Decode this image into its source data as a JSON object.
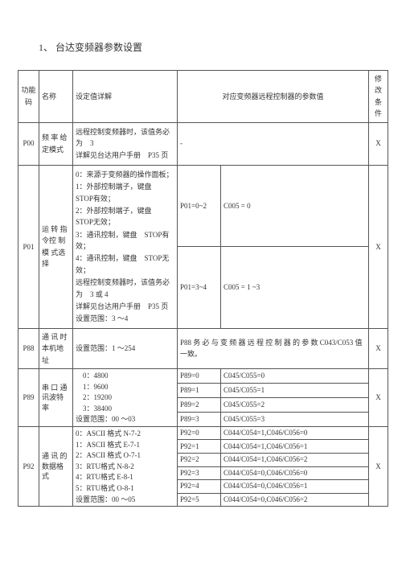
{
  "title": "1、 台达变频器参数设置",
  "headers": {
    "code": "功能码",
    "name": "名称",
    "detail": "设定值详解",
    "remote": "对应变频器远程控制器的参数值",
    "mod": "修 改条件"
  },
  "p00": {
    "code": "P00",
    "name": "频 率 给 定模式",
    "detail_1": "远程控制变频器时，该值务必为　3",
    "detail_2": "详解见台达用户手册　P35 页",
    "pval": "-",
    "mod": "X"
  },
  "p01": {
    "code": "P01",
    "name": "运 转 指 令控 制 模 式选择",
    "lines": [
      "0：来源于变频器的操作面板；",
      "1：外部控制端子，键盘　STOP有效；",
      "2：外部控制端子，键盘　STOP无效；",
      "3：通讯控制，键盘　STOP有效；",
      "4：通讯控制，键盘　STOP无效；",
      "远程控制变频器时，该值务必为　3 或 4",
      "详解见台达用户手册　P35 页",
      "设置范围：3 ～4"
    ],
    "r1_p": "P01=0~2",
    "r1_c": "C005 = 0",
    "r2_p": "P01=3~4",
    "r2_c": "C005 = 1 ~3",
    "mod": "X"
  },
  "p88": {
    "code": "P88",
    "name": "通 讯 时 本机地址",
    "detail": "设置范围：1 ～254",
    "note": "P88 务 必 与 变 频 器 远 程 控 制 器 的 参 数 C043/C053 值一致。",
    "mod": "X"
  },
  "p89": {
    "code": "P89",
    "name": "串 口 通 讯波特率",
    "opts": [
      "　0：4800",
      "　1：9600",
      "　2：19200",
      "　3：38400",
      "设置范围：00 ～03"
    ],
    "rows": [
      {
        "p": "P89=0",
        "c": "C045/C055=0"
      },
      {
        "p": "P89=1",
        "c": "C045/C055=1"
      },
      {
        "p": "P89=2",
        "c": "C045/C055=2"
      },
      {
        "p": "P89=3",
        "c": "C045/C055=3"
      }
    ],
    "mod": "X"
  },
  "p92": {
    "code": "P92",
    "name": "通 讯 的 数据格式",
    "opts": [
      "0：ASCII 格式 N-7-2",
      "1：ASCII 格式 E-7-1",
      "2：ASCII 格式 O-7-1",
      "3：RTU格式 N-8-2",
      "4：RTU格式 E-8-1",
      "5：RTU格式 O-8-1",
      "设置范围：00 ～05"
    ],
    "rows": [
      {
        "p": "P92=0",
        "c": "C044/C054=1,C046/C056=0"
      },
      {
        "p": "P92=1",
        "c": "C044/C054=1,C046/C056=1"
      },
      {
        "p": "P92=2",
        "c": "C044/C054=1,C046/C056=2"
      },
      {
        "p": "P92=3",
        "c": "C044/C054=0,C046/C056=0"
      },
      {
        "p": "P92=4",
        "c": "C044/C054=0,C046/C056=1"
      },
      {
        "p": "P92=5",
        "c": "C044/C054=0,C046/C056=2"
      }
    ],
    "mod": "X"
  }
}
